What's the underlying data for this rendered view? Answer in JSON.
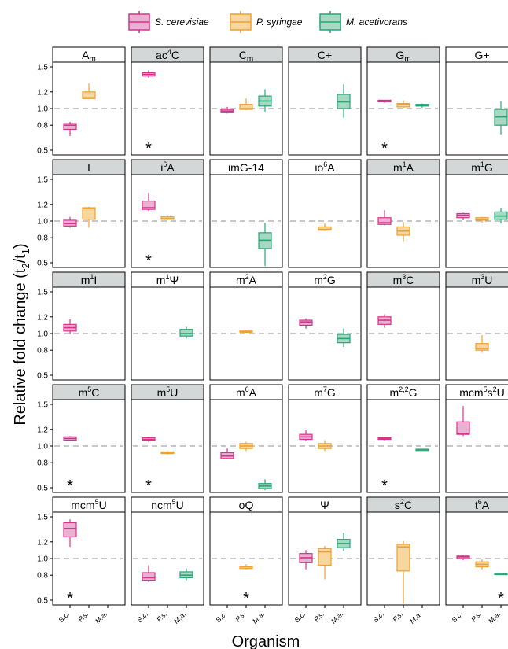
{
  "chart_data": {
    "type": "boxplot",
    "ylabel_main": "Relative fold change (t",
    "ylabel_sub1": "2",
    "ylabel_mid": "/t",
    "ylabel_sub2": "1",
    "ylabel_end": ")",
    "xlabel": "Organism",
    "ylim": [
      0.5,
      1.5
    ],
    "yticks": [
      "0.5",
      "0.8",
      "1.0",
      "1.2",
      "1.5"
    ],
    "ytick_values": [
      0.5,
      0.8,
      1.0,
      1.2,
      1.5
    ],
    "reference_line": 1.0,
    "categories": [
      "S.c.",
      "P.s.",
      "M.a."
    ],
    "series": [
      {
        "name": "S. cerevisiae",
        "color": "#d6338a",
        "fill": "#ebb0d2"
      },
      {
        "name": "P. syringae",
        "color": "#eba032",
        "fill": "#f7d79e"
      },
      {
        "name": "M. acetivorans",
        "color": "#27a678",
        "fill": "#a6d8c2"
      }
    ],
    "panels": [
      {
        "t": "A",
        "sub": "m",
        "gray": false,
        "star": null,
        "boxes": [
          {
            "s": 0,
            "q": [
              0.67,
              0.75,
              0.8,
              0.82,
              0.84
            ]
          },
          {
            "s": 1,
            "q": [
              1.12,
              1.12,
              1.13,
              1.2,
              1.3
            ]
          }
        ]
      },
      {
        "t": "ac",
        "sup": "4",
        "t2": "C",
        "gray": true,
        "star": 0,
        "boxes": [
          {
            "s": 0,
            "q": [
              1.37,
              1.39,
              1.41,
              1.43,
              1.46
            ]
          }
        ]
      },
      {
        "t": "C",
        "sub": "m",
        "gray": true,
        "star": null,
        "boxes": [
          {
            "s": 0,
            "q": [
              0.94,
              0.95,
              0.97,
              0.99,
              1.02
            ]
          },
          {
            "s": 1,
            "q": [
              0.98,
              0.99,
              1.0,
              1.05,
              1.12
            ]
          },
          {
            "s": 2,
            "q": [
              0.96,
              1.03,
              1.09,
              1.15,
              1.23
            ]
          }
        ]
      },
      {
        "t": "C+",
        "gray": true,
        "star": null,
        "boxes": [
          {
            "s": 2,
            "q": [
              0.89,
              1.0,
              1.08,
              1.17,
              1.29
            ]
          }
        ]
      },
      {
        "t": "G",
        "sub": "m",
        "gray": true,
        "star": 0,
        "boxes": [
          {
            "s": 0,
            "q": [
              1.07,
              1.08,
              1.09,
              1.1,
              1.1
            ]
          },
          {
            "s": 1,
            "q": [
              1.01,
              1.02,
              1.05,
              1.06,
              1.1
            ]
          },
          {
            "s": 2,
            "q": [
              1.01,
              1.03,
              1.04,
              1.05,
              1.06
            ]
          }
        ]
      },
      {
        "t": "G+",
        "gray": false,
        "star": null,
        "boxes": [
          {
            "s": 2,
            "q": [
              0.69,
              0.8,
              0.9,
              0.99,
              1.09
            ]
          }
        ]
      },
      {
        "t": "I",
        "gray": true,
        "star": null,
        "boxes": [
          {
            "s": 0,
            "q": [
              0.92,
              0.94,
              0.97,
              1.01,
              1.05
            ]
          },
          {
            "s": 1,
            "q": [
              0.92,
              1.02,
              1.15,
              1.16,
              1.17
            ]
          }
        ]
      },
      {
        "t": "i",
        "sup": "6",
        "t2": "A",
        "gray": true,
        "star": 0,
        "boxes": [
          {
            "s": 0,
            "q": [
              1.12,
              1.14,
              1.16,
              1.24,
              1.34
            ]
          },
          {
            "s": 1,
            "q": [
              1.01,
              1.02,
              1.03,
              1.05,
              1.07
            ]
          }
        ]
      },
      {
        "t": "imG-14",
        "gray": false,
        "star": null,
        "boxes": [
          {
            "s": 2,
            "q": [
              0.46,
              0.67,
              0.77,
              0.86,
              0.98
            ]
          }
        ]
      },
      {
        "t": "io",
        "sup": "6",
        "t2": "A",
        "gray": false,
        "star": null,
        "boxes": [
          {
            "s": 1,
            "q": [
              0.88,
              0.89,
              0.9,
              0.93,
              0.97
            ]
          }
        ]
      },
      {
        "t": "m",
        "sup": "1",
        "t2": "A",
        "gray": true,
        "star": null,
        "boxes": [
          {
            "s": 0,
            "q": [
              0.95,
              0.96,
              0.98,
              1.04,
              1.13
            ]
          },
          {
            "s": 1,
            "q": [
              0.76,
              0.83,
              0.88,
              0.93,
              0.99
            ]
          }
        ]
      },
      {
        "t": "m",
        "sup": "1",
        "t2": "G",
        "gray": true,
        "star": null,
        "boxes": [
          {
            "s": 0,
            "q": [
              1.01,
              1.04,
              1.07,
              1.09,
              1.1
            ]
          },
          {
            "s": 1,
            "q": [
              0.98,
              1.01,
              1.02,
              1.04,
              1.05
            ]
          },
          {
            "s": 2,
            "q": [
              0.97,
              1.02,
              1.06,
              1.11,
              1.16
            ]
          }
        ]
      },
      {
        "t": "m",
        "sup": "1",
        "t2": "I",
        "gray": true,
        "star": null,
        "boxes": [
          {
            "s": 0,
            "q": [
              0.99,
              1.03,
              1.07,
              1.11,
              1.17
            ]
          }
        ]
      },
      {
        "t": "m",
        "sup": "1",
        "t2": "Ψ",
        "gray": false,
        "star": null,
        "boxes": [
          {
            "s": 2,
            "q": [
              0.94,
              0.97,
              1.0,
              1.05,
              1.08
            ]
          }
        ]
      },
      {
        "t": "m",
        "sup": "2",
        "t2": "A",
        "gray": false,
        "star": null,
        "boxes": [
          {
            "s": 1,
            "q": [
              1.01,
              1.02,
              1.02,
              1.03,
              1.04
            ]
          }
        ]
      },
      {
        "t": "m",
        "sup": "2",
        "t2": "G",
        "gray": false,
        "star": null,
        "boxes": [
          {
            "s": 0,
            "q": [
              1.06,
              1.1,
              1.14,
              1.16,
              1.18
            ]
          },
          {
            "s": 2,
            "q": [
              0.84,
              0.89,
              0.94,
              0.99,
              1.06
            ]
          }
        ]
      },
      {
        "t": "m",
        "sup": "3",
        "t2": "C",
        "gray": true,
        "star": null,
        "boxes": [
          {
            "s": 0,
            "q": [
              1.07,
              1.11,
              1.16,
              1.2,
              1.23
            ]
          }
        ]
      },
      {
        "t": "m",
        "sup": "3",
        "t2": "U",
        "gray": true,
        "star": null,
        "boxes": [
          {
            "s": 1,
            "q": [
              0.77,
              0.8,
              0.82,
              0.88,
              0.98
            ]
          }
        ]
      },
      {
        "t": "m",
        "sup": "5",
        "t2": "C",
        "gray": true,
        "star": 0,
        "boxes": [
          {
            "s": 0,
            "q": [
              1.06,
              1.07,
              1.09,
              1.11,
              1.12
            ]
          }
        ]
      },
      {
        "t": "m",
        "sup": "5",
        "t2": "U",
        "gray": true,
        "star": 0,
        "boxes": [
          {
            "s": 0,
            "q": [
              1.05,
              1.07,
              1.08,
              1.1,
              1.11
            ]
          },
          {
            "s": 1,
            "q": [
              0.9,
              0.91,
              0.92,
              0.93,
              0.94
            ]
          }
        ]
      },
      {
        "t": "m",
        "sup": "6",
        "t2": "A",
        "gray": false,
        "star": null,
        "boxes": [
          {
            "s": 0,
            "q": [
              0.84,
              0.85,
              0.88,
              0.92,
              0.97
            ]
          },
          {
            "s": 1,
            "q": [
              0.94,
              0.97,
              1.0,
              1.03,
              1.05
            ]
          },
          {
            "s": 2,
            "q": [
              0.47,
              0.49,
              0.52,
              0.55,
              0.6
            ]
          }
        ]
      },
      {
        "t": "m",
        "sup": "7",
        "t2": "G",
        "gray": false,
        "star": null,
        "boxes": [
          {
            "s": 0,
            "q": [
              1.06,
              1.08,
              1.11,
              1.14,
              1.19
            ]
          },
          {
            "s": 1,
            "q": [
              0.94,
              0.97,
              1.0,
              1.03,
              1.07
            ]
          }
        ]
      },
      {
        "t": "m",
        "sup": "2,2",
        "t2": "G",
        "gray": false,
        "star": 0,
        "boxes": [
          {
            "s": 0,
            "q": [
              1.07,
              1.08,
              1.09,
              1.1,
              1.1
            ]
          },
          {
            "s": 2,
            "q": [
              0.96,
              0.96,
              0.96,
              0.96,
              0.96
            ]
          }
        ]
      },
      {
        "t": "mcm",
        "sup": "5",
        "t2": "s",
        "sup2": "2",
        "t3": "U",
        "gray": false,
        "star": null,
        "boxes": [
          {
            "s": 0,
            "q": [
              1.12,
              1.14,
              1.15,
              1.29,
              1.48
            ]
          }
        ]
      },
      {
        "t": "mcm",
        "sup": "5",
        "t2": "U",
        "gray": false,
        "star": 0,
        "boxes": [
          {
            "s": 0,
            "q": [
              1.14,
              1.26,
              1.36,
              1.43,
              1.47
            ]
          }
        ]
      },
      {
        "t": "ncm",
        "sup": "5",
        "t2": "U",
        "gray": false,
        "star": null,
        "boxes": [
          {
            "s": 0,
            "q": [
              0.72,
              0.74,
              0.77,
              0.83,
              0.92
            ]
          },
          {
            "s": 2,
            "q": [
              0.74,
              0.77,
              0.8,
              0.84,
              0.88
            ]
          }
        ]
      },
      {
        "t": "oQ",
        "gray": false,
        "star": 1,
        "boxes": [
          {
            "s": 1,
            "q": [
              0.87,
              0.88,
              0.9,
              0.91,
              0.93
            ]
          }
        ]
      },
      {
        "t": "Ψ",
        "gray": false,
        "star": null,
        "boxes": [
          {
            "s": 0,
            "q": [
              0.87,
              0.95,
              1.01,
              1.06,
              1.1
            ]
          },
          {
            "s": 1,
            "q": [
              0.75,
              0.92,
              1.08,
              1.12,
              1.15
            ]
          },
          {
            "s": 2,
            "q": [
              1.09,
              1.13,
              1.18,
              1.23,
              1.31
            ]
          }
        ]
      },
      {
        "t": "s",
        "sup": "2",
        "t2": "C",
        "gray": true,
        "star": null,
        "boxes": [
          {
            "s": 1,
            "q": [
              0.46,
              0.85,
              1.14,
              1.17,
              1.21
            ]
          }
        ]
      },
      {
        "t": "t",
        "sup": "6",
        "t2": "A",
        "gray": true,
        "star": 2,
        "boxes": [
          {
            "s": 0,
            "q": [
              0.98,
              1.0,
              1.02,
              1.03,
              1.04
            ]
          },
          {
            "s": 1,
            "q": [
              0.87,
              0.9,
              0.93,
              0.96,
              0.99
            ]
          },
          {
            "s": 2,
            "q": [
              0.82,
              0.82,
              0.82,
              0.82,
              0.82
            ]
          }
        ]
      }
    ]
  }
}
